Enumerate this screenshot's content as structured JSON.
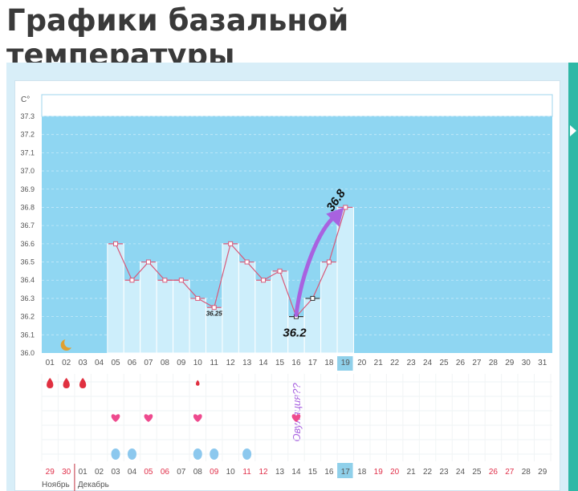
{
  "page": {
    "title": "Графики базальной температуры"
  },
  "colors": {
    "chart_bg": "#8fd6f2",
    "bar_fill": "#cdeefb",
    "line": "#d85a7a",
    "arrow": "#a862e0",
    "red_day": "#e0304a",
    "highlight_day": "#8fd0ea",
    "drop": "#e03040",
    "heart": "#ee4a8e",
    "blue_drop": "#8cc8ee",
    "moon": "#e0a030"
  },
  "chart_data": {
    "type": "line",
    "y_unit": "C°",
    "ylim": [
      36.0,
      37.3
    ],
    "y_ticks": [
      "36.0",
      "36.1",
      "36.2",
      "36.3",
      "36.4",
      "36.5",
      "36.6",
      "36.7",
      "36.8",
      "36.9",
      "37.0",
      "37.1",
      "37.2",
      "37.3"
    ],
    "days": [
      "01",
      "02",
      "03",
      "04",
      "05",
      "06",
      "07",
      "08",
      "09",
      "10",
      "11",
      "12",
      "13",
      "14",
      "15",
      "16",
      "17",
      "18",
      "19",
      "20",
      "21",
      "22",
      "23",
      "24",
      "25",
      "26",
      "27",
      "28",
      "29",
      "30",
      "31"
    ],
    "highlighted_day": "19",
    "series": [
      {
        "values": [
          null,
          null,
          null,
          null,
          36.6,
          36.4,
          36.5,
          36.4,
          36.4,
          36.3,
          36.25,
          36.6,
          36.5,
          36.4,
          36.45,
          36.2,
          36.3,
          36.5,
          36.8
        ]
      }
    ],
    "annotations": [
      {
        "text": "36.25",
        "day": "11"
      },
      {
        "text": "36.2",
        "day": "16"
      },
      {
        "text": "36.8",
        "day": "19"
      },
      {
        "text": "Овуляция??",
        "day": "15"
      }
    ],
    "calendar": {
      "dates": [
        "29",
        "30",
        "01",
        "02",
        "03",
        "04",
        "05",
        "06",
        "07",
        "08",
        "09",
        "10",
        "11",
        "12",
        "13",
        "14",
        "15",
        "16",
        "17",
        "18",
        "19",
        "20",
        "21",
        "22",
        "23",
        "24",
        "25",
        "26",
        "27",
        "28",
        "29"
      ],
      "red_dates": [
        0,
        1,
        6,
        7,
        10,
        12,
        13,
        20,
        21,
        27,
        28
      ],
      "highlighted_date": 18,
      "month_left": "Ноябрь",
      "month_right": "Декабрь"
    },
    "markers": {
      "moon_day": 1,
      "red_drops": [
        0,
        1,
        2
      ],
      "small_drop": 9,
      "hearts": [
        4,
        6,
        9
      ],
      "blue_drops": [
        4,
        5,
        9,
        10,
        12
      ]
    }
  }
}
